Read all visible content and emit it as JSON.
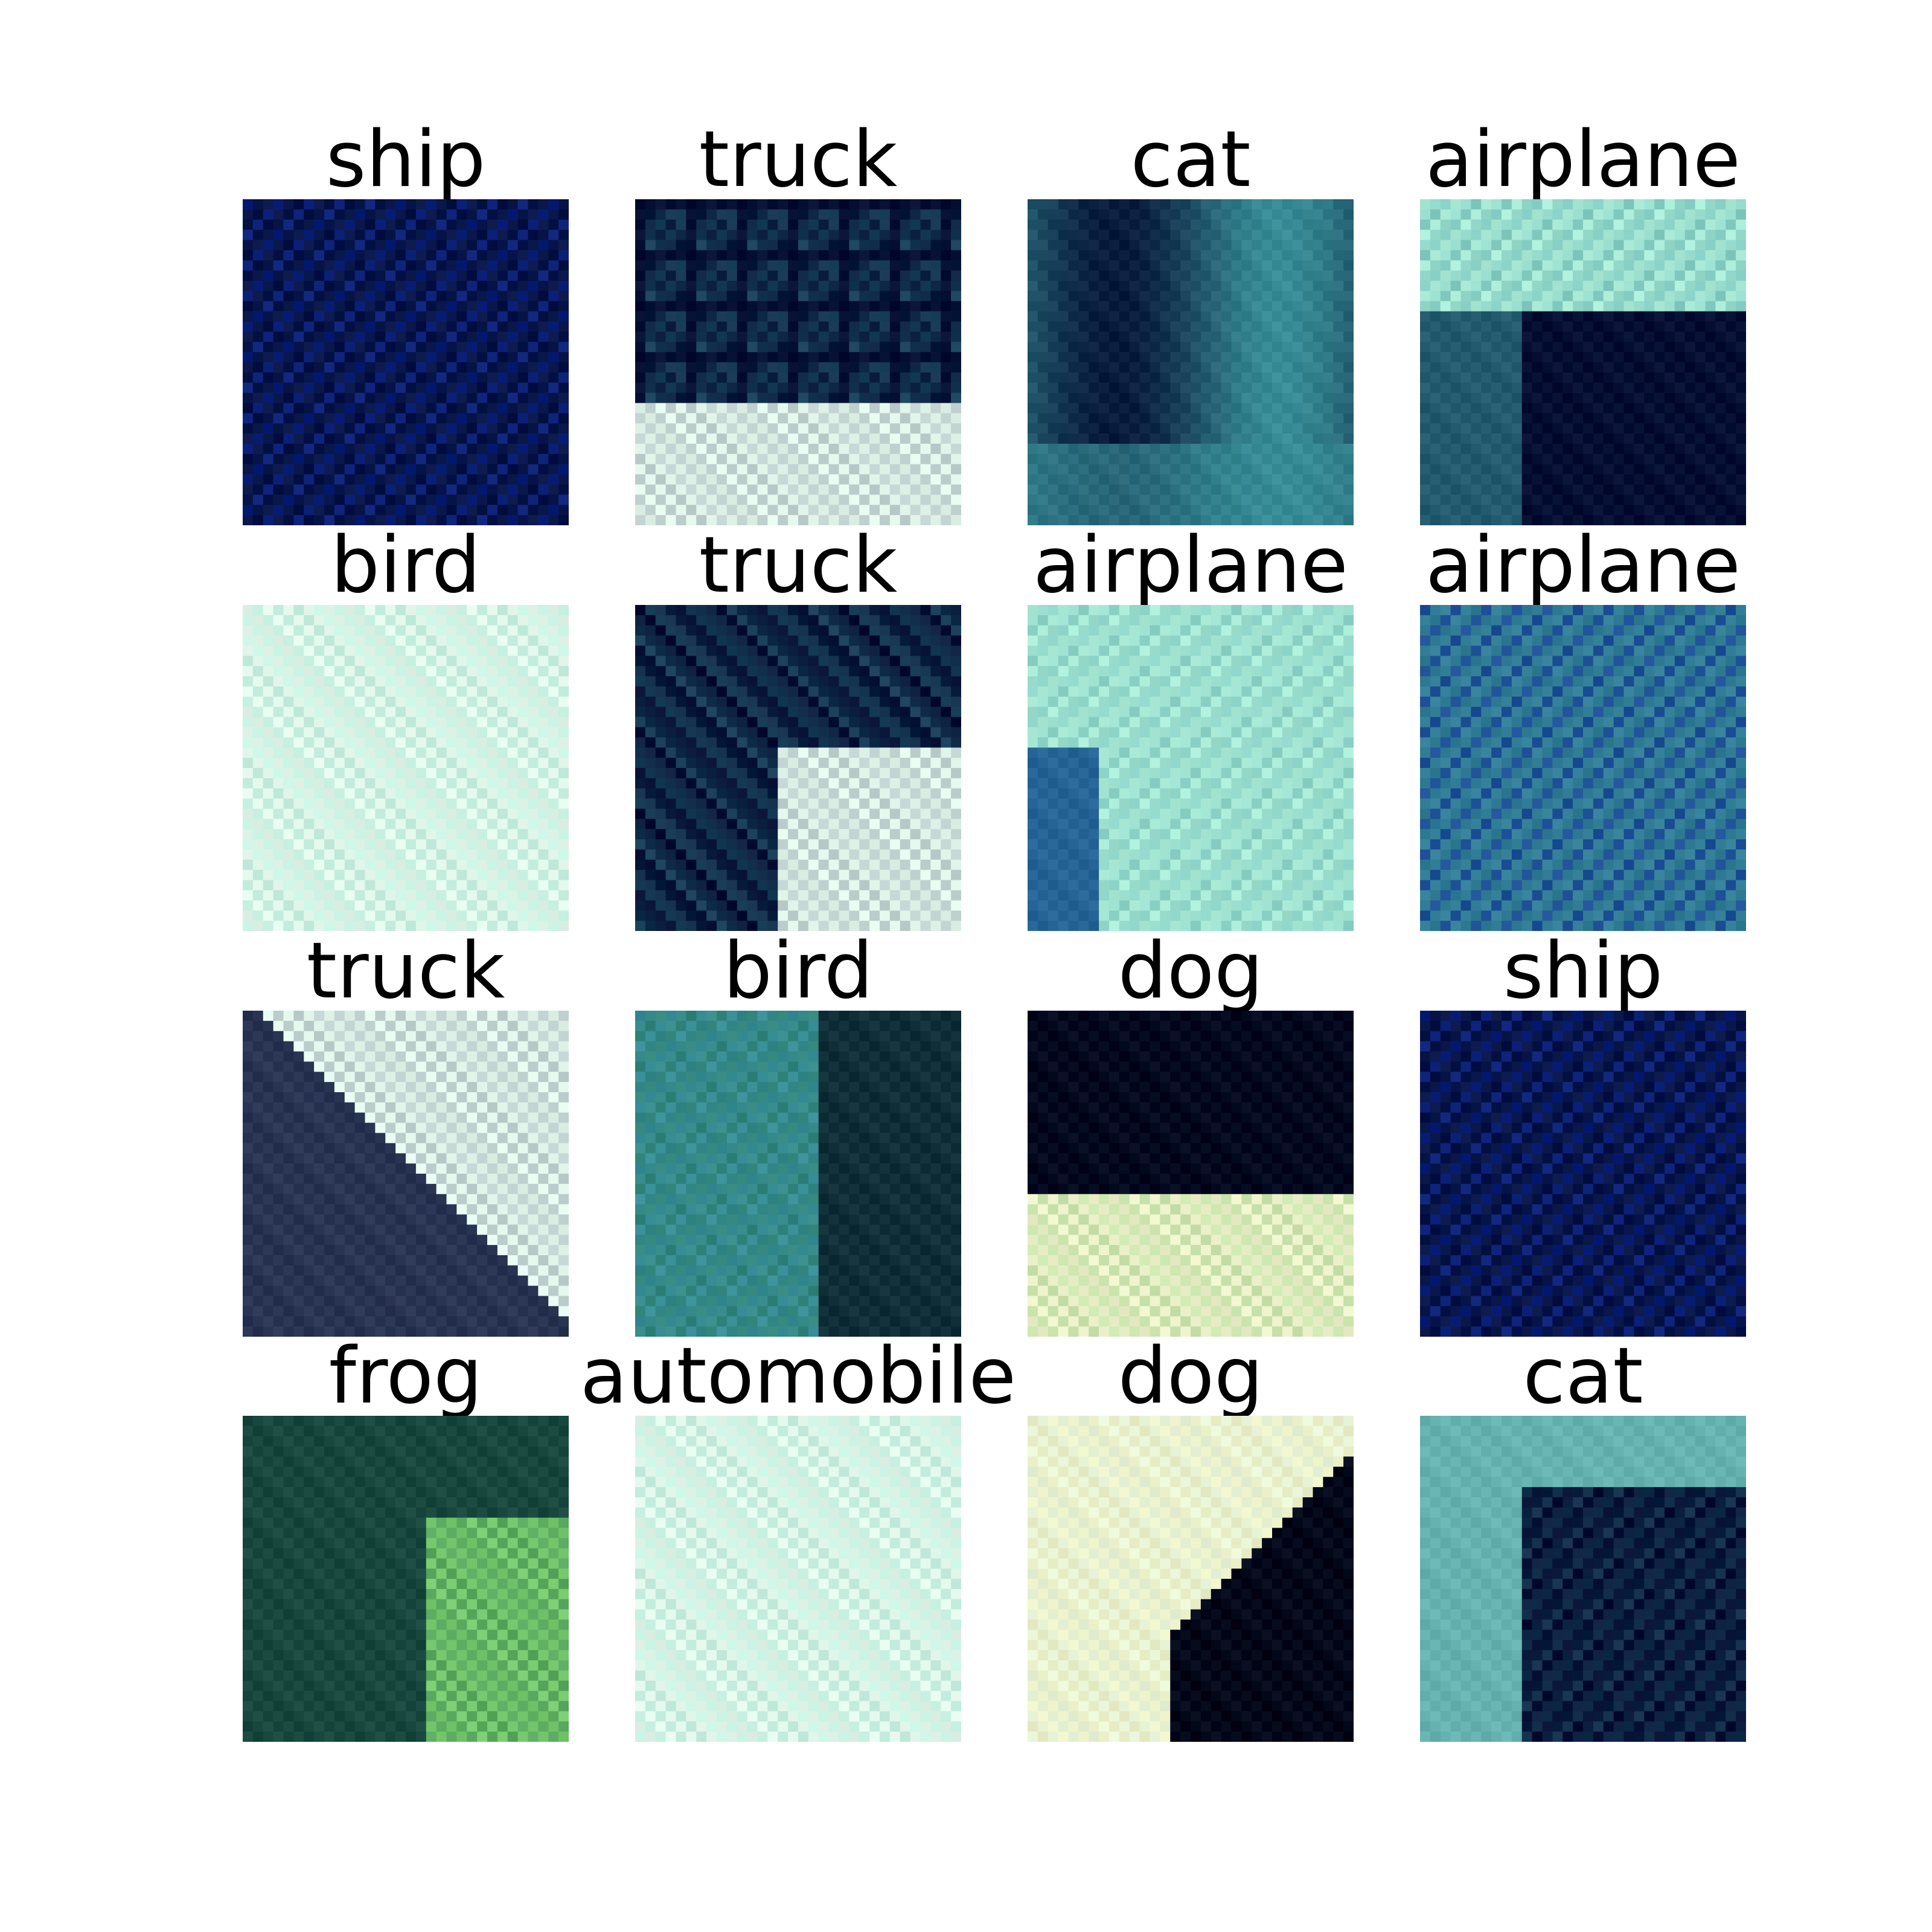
{
  "grid": {
    "rows": 4,
    "cols": 4,
    "cells": [
      {
        "label": "ship",
        "palette": "ship"
      },
      {
        "label": "truck",
        "palette": "truck"
      },
      {
        "label": "cat",
        "palette": "teal"
      },
      {
        "label": "airplane",
        "palette": "split-top-light"
      },
      {
        "label": "bird",
        "palette": "light"
      },
      {
        "label": "truck",
        "palette": "dark-left"
      },
      {
        "label": "airplane",
        "palette": "light-blue"
      },
      {
        "label": "airplane",
        "palette": "cyan"
      },
      {
        "label": "truck",
        "palette": "diag"
      },
      {
        "label": "bird",
        "palette": "green-dark"
      },
      {
        "label": "dog",
        "palette": "dark-top"
      },
      {
        "label": "ship",
        "palette": "ship"
      },
      {
        "label": "frog",
        "palette": "green"
      },
      {
        "label": "automobile",
        "palette": "light"
      },
      {
        "label": "dog",
        "palette": "dog2"
      },
      {
        "label": "cat",
        "palette": "cat2"
      }
    ]
  },
  "colors": {
    "background": "#ffffff",
    "title_text": "#000000"
  }
}
